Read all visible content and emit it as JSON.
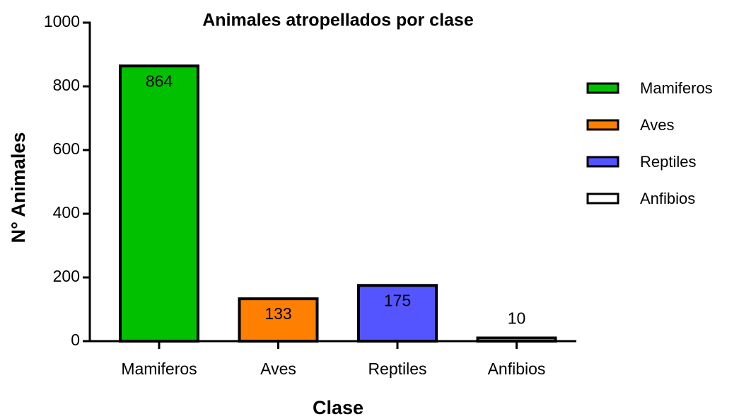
{
  "chart_data": {
    "type": "bar",
    "title": "Animales atropellados por clase",
    "x_label": "Clase",
    "y_label": "N° Animales",
    "categories": [
      "Mamiferos",
      "Aves",
      "Reptiles",
      "Anfibios"
    ],
    "values": [
      864,
      133,
      175,
      10
    ],
    "colors": [
      "#00c000",
      "#ff8000",
      "#5555ff",
      "#ffffff"
    ],
    "ylim": [
      0,
      1000
    ],
    "yticks": [
      0,
      200,
      400,
      600,
      800,
      1000
    ],
    "legend": "right"
  }
}
